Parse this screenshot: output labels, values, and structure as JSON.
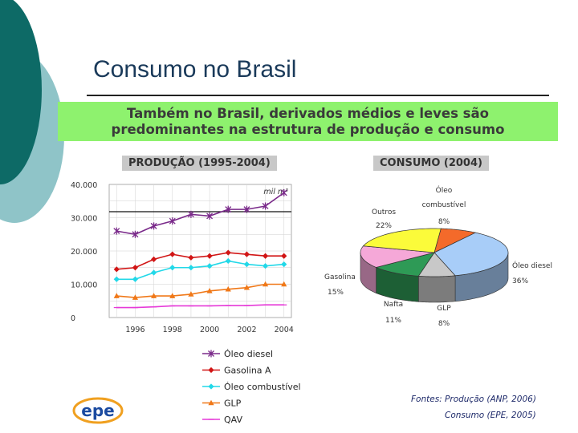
{
  "slide": {
    "title": "Consumo no Brasil",
    "banner_line1": "Também no Brasil, derivados médios e leves são",
    "banner_line2": "predominantes na estrutura de produção e consumo",
    "logo_text": "epe",
    "sources": {
      "line1": "Fontes: Produção (ANP, 2006)",
      "line2": "Consumo (EPE, 2005)"
    }
  },
  "chart_data": [
    {
      "type": "line",
      "title": "PRODUÇÃO (1995-2004)",
      "unit_label": "mil m³",
      "x": [
        1995,
        1996,
        1997,
        1998,
        1999,
        2000,
        2001,
        2002,
        2003,
        2004
      ],
      "xticks": [
        "1996",
        "1998",
        "2000",
        "2002",
        "2004"
      ],
      "ylim": [
        0,
        40000
      ],
      "yticks": [
        "40.000",
        "30.000",
        "20.000",
        "10.000",
        "0"
      ],
      "series": [
        {
          "name": "Óleo diesel",
          "color": "#7a2a8a",
          "marker": "star",
          "values": [
            26000,
            25000,
            27500,
            29000,
            31000,
            30500,
            32500,
            32500,
            33500,
            37500
          ]
        },
        {
          "name": "Gasolina A",
          "color": "#d11515",
          "marker": "diamond",
          "values": [
            14500,
            15000,
            17500,
            19000,
            18000,
            18500,
            19500,
            19000,
            18500,
            18500
          ]
        },
        {
          "name": "Óleo combustível",
          "color": "#22d8e8",
          "marker": "diamond",
          "values": [
            11500,
            11500,
            13500,
            15000,
            15000,
            15500,
            17000,
            16000,
            15500,
            16000
          ]
        },
        {
          "name": "GLP",
          "color": "#f07818",
          "marker": "triangle",
          "values": [
            6500,
            6000,
            6500,
            6500,
            7000,
            8000,
            8500,
            9000,
            10000,
            10000
          ]
        },
        {
          "name": "QAV",
          "color": "#e63ad8",
          "marker": "line",
          "values": [
            3000,
            3000,
            3200,
            3500,
            3500,
            3500,
            3600,
            3600,
            3800,
            3800
          ]
        }
      ]
    },
    {
      "type": "pie",
      "title": "CONSUMO (2004)",
      "slices": [
        {
          "label": "Óleo combustível",
          "value": 8,
          "pct": "8%",
          "color": "#f46a2a"
        },
        {
          "label": "Óleo diesel",
          "value": 36,
          "pct": "36%",
          "color": "#a8cdf8"
        },
        {
          "label": "GLP",
          "value": 8,
          "pct": "8%",
          "color": "#c8c8c8"
        },
        {
          "label": "Nafta",
          "value": 11,
          "pct": "11%",
          "color": "#2e9a56"
        },
        {
          "label": "Gasolina",
          "value": 15,
          "pct": "15%",
          "color": "#f5a8d8"
        },
        {
          "label": "Outros",
          "value": 22,
          "pct": "22%",
          "color": "#fbfb3a"
        }
      ]
    }
  ]
}
